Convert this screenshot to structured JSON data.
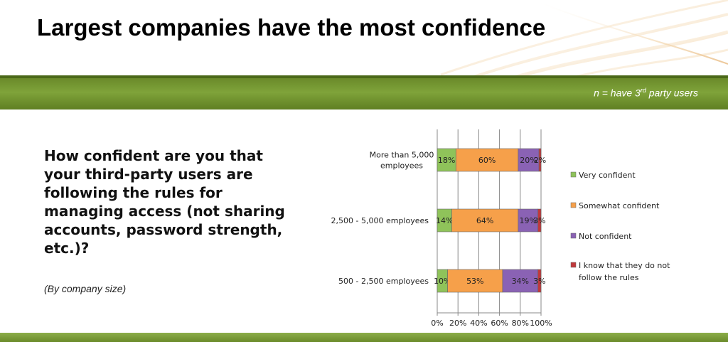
{
  "slide": {
    "title": "Largest companies have the most confidence",
    "n_note_prefix": "n = have 3",
    "n_note_sup": "rd",
    "n_note_suffix": " party users",
    "question": "How confident are you that your third-party users are following the rules for managing access (not sharing accounts, password strength, etc.)?",
    "subnote": "(By company size)"
  },
  "colors": {
    "band": "#7fa33a",
    "very_confident": "#8fc35a",
    "somewhat_confident": "#f6a04a",
    "not_confident": "#8a62b4",
    "dont_follow": "#c0393b"
  },
  "chart_data": {
    "type": "bar",
    "orientation": "horizontal",
    "stacked": true,
    "categories": [
      "More than 5,000 employees",
      "2,500 - 5,000 employees",
      "500 - 2,500 employees"
    ],
    "series": [
      {
        "name": "Very confident",
        "values": [
          18,
          14,
          10
        ],
        "labels": [
          "18%",
          "14%",
          "10%"
        ],
        "color": "#8fc35a"
      },
      {
        "name": "Somewhat confident",
        "values": [
          60,
          64,
          53
        ],
        "labels": [
          "60%",
          "64%",
          "53%"
        ],
        "color": "#f6a04a"
      },
      {
        "name": "Not confident",
        "values": [
          20,
          19,
          34
        ],
        "labels": [
          "20%",
          "19%",
          "34%"
        ],
        "color": "#8a62b4"
      },
      {
        "name": "I know that they do not follow the rules",
        "values": [
          2,
          3,
          3
        ],
        "labels": [
          "2%",
          "3%",
          "3%"
        ],
        "color": "#c0393b"
      }
    ],
    "xlim": [
      0,
      100
    ],
    "xticks": [
      "0%",
      "20%",
      "40%",
      "60%",
      "80%",
      "100%"
    ],
    "grid": true,
    "legend": "right"
  }
}
